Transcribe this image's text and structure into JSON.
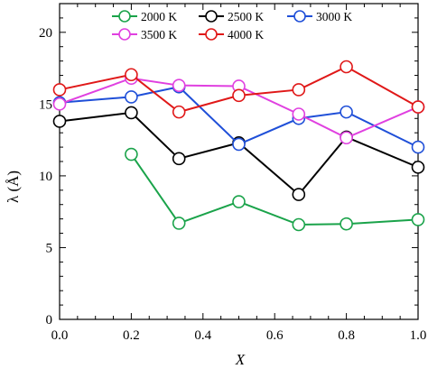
{
  "chart_data": {
    "type": "line",
    "title": "",
    "xlabel": "X",
    "ylabel": "λ (Å)",
    "xlim": [
      0.0,
      1.0
    ],
    "ylim": [
      0,
      22
    ],
    "xticks": [
      0.0,
      0.2,
      0.4,
      0.6,
      0.8,
      1.0
    ],
    "xtick_labels": [
      "0.0",
      "0.2",
      "0.4",
      "0.6",
      "0.8",
      "1.0"
    ],
    "yticks": [
      0,
      5,
      10,
      15,
      20
    ],
    "ytick_labels": [
      "0",
      "5",
      "10",
      "15",
      "20"
    ],
    "grid": false,
    "legend_position": "top",
    "marker": "open-circle",
    "series": [
      {
        "name": "2000 K",
        "color": "#1aa34a",
        "x": [
          0.2,
          0.333,
          0.5,
          0.667,
          0.8,
          1.0
        ],
        "y": [
          11.5,
          6.7,
          8.2,
          6.6,
          6.65,
          6.95
        ]
      },
      {
        "name": "2500 K",
        "color": "#000000",
        "x": [
          0.0,
          0.2,
          0.333,
          0.5,
          0.667,
          0.8,
          1.0
        ],
        "y": [
          13.8,
          14.4,
          11.2,
          12.3,
          8.7,
          12.7,
          10.6
        ]
      },
      {
        "name": "3000 K",
        "color": "#1f4fd8",
        "x": [
          0.0,
          0.2,
          0.333,
          0.5,
          0.667,
          0.8,
          1.0
        ],
        "y": [
          15.1,
          15.5,
          16.2,
          12.2,
          14.0,
          14.45,
          12.0
        ]
      },
      {
        "name": "3500 K",
        "color": "#e040e0",
        "x": [
          0.0,
          0.2,
          0.333,
          0.5,
          0.667,
          0.8,
          1.0
        ],
        "y": [
          15.0,
          16.8,
          16.3,
          16.25,
          14.3,
          12.65,
          14.8
        ]
      },
      {
        "name": "4000 K",
        "color": "#e01818",
        "x": [
          0.0,
          0.2,
          0.333,
          0.5,
          0.667,
          0.8,
          1.0
        ],
        "y": [
          16.0,
          17.05,
          14.45,
          15.6,
          16.0,
          17.6,
          14.8
        ]
      }
    ]
  }
}
